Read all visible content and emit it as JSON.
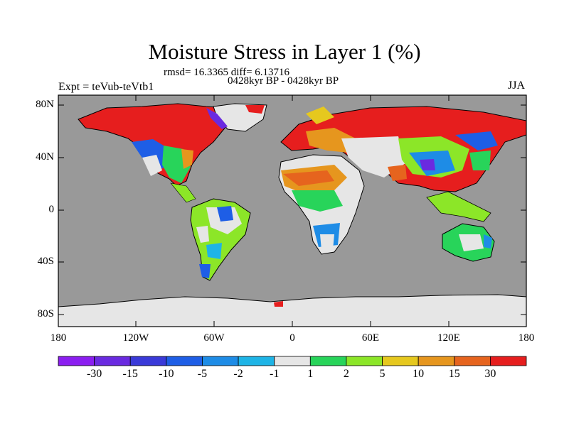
{
  "title": "Moisture Stress in Layer 1 (%)",
  "stats": "rmsd= 16.3365 diff= 6.13716",
  "period": "0428kyr BP - 0428kyr BP",
  "experiment": "Expt = teVub-teVtb1",
  "season": "JJA",
  "lat_labels": [
    "80N",
    "40N",
    "0",
    "40S",
    "80S"
  ],
  "lon_labels": [
    "180",
    "120W",
    "60W",
    "0",
    "60E",
    "120E",
    "180"
  ],
  "colorbar": {
    "labels": [
      "-30",
      "-15",
      "-10",
      "-5",
      "-2",
      "-1",
      "1",
      "2",
      "5",
      "10",
      "15",
      "30"
    ],
    "colors": [
      "#8b1ef0",
      "#6a2ae0",
      "#3a3ad8",
      "#1e5ee6",
      "#1e8ce6",
      "#1eb4e6",
      "#e6e6e6",
      "#28d45a",
      "#8ce628",
      "#e6c81e",
      "#e6961e",
      "#e6641e",
      "#e61e1e"
    ]
  },
  "map": {
    "ocean_color": "#999999",
    "land_outline_color": "#000000",
    "antarctica_color": "#e6e6e6"
  }
}
